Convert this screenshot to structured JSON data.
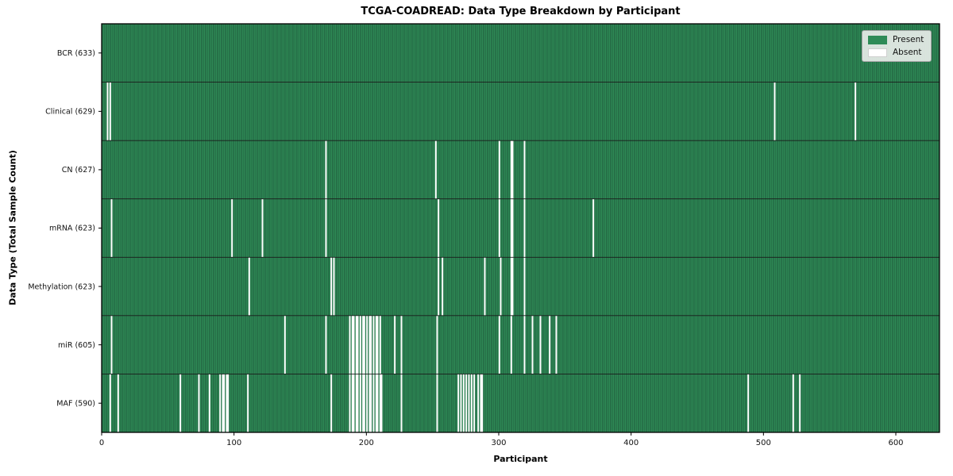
{
  "chart_data": {
    "type": "heatmap",
    "title": "TCGA-COADREAD: Data Type Breakdown by Participant",
    "xlabel": "Participant",
    "ylabel": "Data Type (Total Sample Count)",
    "x_range": [
      0,
      633
    ],
    "x_ticks": [
      0,
      100,
      200,
      300,
      400,
      500,
      600
    ],
    "grid": false,
    "legend_position": "upper right",
    "present_color": "#2e8b57",
    "cell_edge_color": "#1c5236",
    "absent_color": "#ffffff",
    "legend": [
      {
        "label": "Present",
        "color": "#2e8b57"
      },
      {
        "label": "Absent",
        "color": "#ffffff"
      }
    ],
    "rows": [
      {
        "label": "BCR (633)",
        "total_samples": 633,
        "absent_participants": []
      },
      {
        "label": "Clinical (629)",
        "total_samples": 629,
        "absent_participants": [
          4,
          6,
          508,
          569
        ]
      },
      {
        "label": "CN (627)",
        "total_samples": 627,
        "absent_participants": [
          169,
          252,
          300,
          309,
          310,
          319
        ]
      },
      {
        "label": "mRNA (623)",
        "total_samples": 623,
        "absent_participants": [
          7,
          98,
          121,
          169,
          254,
          300,
          309,
          310,
          319,
          371
        ]
      },
      {
        "label": "Methylation (623)",
        "total_samples": 623,
        "absent_participants": [
          111,
          173,
          175,
          254,
          257,
          289,
          301,
          309,
          310,
          319
        ]
      },
      {
        "label": "miR (605)",
        "total_samples": 605,
        "absent_participants": [
          7,
          138,
          169,
          187,
          189,
          190,
          192,
          193,
          195,
          197,
          198,
          200,
          202,
          203,
          205,
          207,
          208,
          210,
          221,
          226,
          253,
          300,
          309,
          319,
          325,
          331,
          338,
          343
        ]
      },
      {
        "label": "MAF (590)",
        "total_samples": 590,
        "absent_participants": [
          6,
          12,
          59,
          73,
          81,
          89,
          91,
          92,
          94,
          95,
          110,
          173,
          187,
          189,
          190,
          192,
          193,
          195,
          197,
          198,
          200,
          202,
          203,
          205,
          207,
          208,
          210,
          211,
          226,
          253,
          269,
          271,
          273,
          275,
          277,
          279,
          281,
          284,
          286,
          287,
          488,
          522,
          527
        ]
      }
    ]
  }
}
